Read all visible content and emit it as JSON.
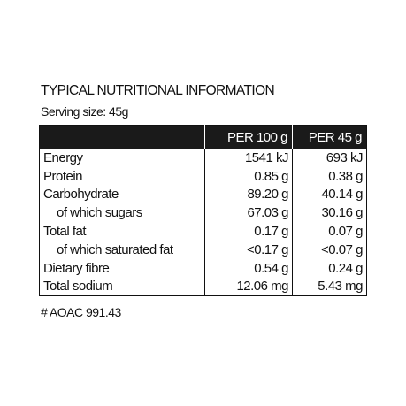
{
  "header": {
    "title": "TYPICAL NUTRITIONAL INFORMATION",
    "serving": "Serving size: 45g"
  },
  "table": {
    "columns": [
      "PER 100 g",
      "PER 45 g"
    ],
    "rows": [
      [
        "Energy",
        "1541 kJ",
        "693 kJ"
      ],
      [
        "Protein",
        "0.85 g",
        "0.38 g"
      ],
      [
        "Carbohydrate",
        "89.20 g",
        "40.14 g"
      ],
      [
        "of which sugars",
        "67.03 g",
        "30.16 g"
      ],
      [
        "Total fat",
        "0.17 g",
        "0.07 g"
      ],
      [
        "of which saturated fat",
        "<0.17 g",
        "<0.07 g"
      ],
      [
        "Dietary fibre",
        "0.54 g",
        "0.24 g"
      ],
      [
        "Total sodium",
        "12.06 mg",
        "5.43 mg"
      ]
    ]
  },
  "footnote": "# AOAC 991.43"
}
